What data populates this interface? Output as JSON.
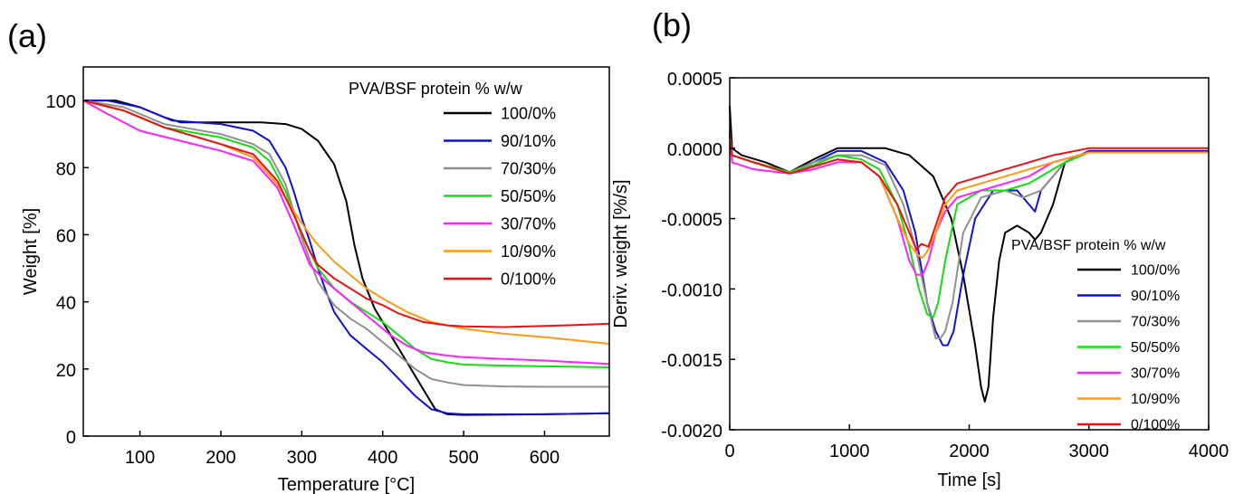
{
  "chart_data": [
    {
      "panel_label": "(a)",
      "type": "line",
      "xlabel": "Temperature [°C]",
      "ylabel": "Weight [%]",
      "xlim": [
        30,
        680
      ],
      "ylim": [
        0,
        110
      ],
      "xticks": [
        100,
        200,
        300,
        400,
        500,
        600
      ],
      "yticks": [
        0,
        20,
        40,
        60,
        80,
        100
      ],
      "legend_title": "PVA/BSF protein % w/w",
      "legend_position": "top-right",
      "grid": false,
      "series": [
        {
          "name": "100/0%",
          "color": "#000000",
          "x": [
            30,
            70,
            100,
            130,
            150,
            200,
            250,
            280,
            300,
            320,
            340,
            355,
            365,
            375,
            390,
            410,
            430,
            450,
            465,
            480,
            500,
            600,
            680
          ],
          "y": [
            100,
            100,
            98,
            95,
            93.5,
            93.5,
            93.5,
            93,
            91.5,
            88,
            81,
            70,
            57,
            47,
            38,
            30,
            22,
            14,
            8,
            6.5,
            6.3,
            6.5,
            6.8
          ]
        },
        {
          "name": "90/10%",
          "color": "#1010e0",
          "x": [
            30,
            60,
            100,
            140,
            200,
            240,
            260,
            280,
            290,
            300,
            310,
            320,
            330,
            340,
            360,
            380,
            400,
            420,
            440,
            460,
            480,
            500,
            600,
            680
          ],
          "y": [
            100,
            100,
            98,
            94,
            93,
            91,
            88,
            80,
            73,
            65,
            58,
            50,
            43,
            37,
            30,
            26,
            22,
            17,
            12,
            8,
            6.8,
            6.5,
            6.5,
            6.8
          ]
        },
        {
          "name": "70/30%",
          "color": "#909090",
          "x": [
            30,
            80,
            130,
            200,
            240,
            260,
            280,
            300,
            320,
            340,
            360,
            380,
            400,
            420,
            440,
            460,
            480,
            500,
            550,
            600,
            680
          ],
          "y": [
            100,
            98,
            93,
            90,
            87,
            84,
            75,
            59,
            46,
            39,
            35,
            32,
            28,
            24,
            20,
            17,
            16,
            15.2,
            14.8,
            14.7,
            14.7
          ]
        },
        {
          "name": "50/50%",
          "color": "#10e010",
          "x": [
            30,
            80,
            130,
            200,
            240,
            260,
            280,
            300,
            320,
            340,
            360,
            380,
            400,
            420,
            440,
            460,
            480,
            500,
            550,
            600,
            680
          ],
          "y": [
            100,
            97,
            92,
            89,
            86,
            82,
            73,
            60,
            50,
            44,
            40,
            37,
            34,
            30,
            26,
            23,
            22,
            21.3,
            21,
            20.8,
            20.5
          ]
        },
        {
          "name": "30/70%",
          "color": "#ff20ff",
          "x": [
            30,
            60,
            100,
            150,
            200,
            240,
            270,
            290,
            310,
            330,
            350,
            370,
            390,
            410,
            430,
            450,
            480,
            500,
            550,
            600,
            680
          ],
          "y": [
            100,
            96,
            91,
            88,
            85,
            82,
            74,
            63,
            51,
            46,
            42,
            38,
            34,
            30,
            27,
            25,
            24,
            23.5,
            23,
            22.5,
            21.5
          ]
        },
        {
          "name": "10/90%",
          "color": "#ff9a10",
          "x": [
            30,
            80,
            130,
            200,
            240,
            270,
            290,
            310,
            320,
            340,
            360,
            380,
            400,
            430,
            460,
            500,
            550,
            600,
            680
          ],
          "y": [
            100,
            97,
            92,
            87,
            83,
            75,
            67,
            60,
            57,
            52,
            48,
            44,
            41,
            37,
            34,
            32,
            30.5,
            29.5,
            27.5
          ]
        },
        {
          "name": "0/100%",
          "color": "#ee1010",
          "x": [
            30,
            80,
            130,
            200,
            240,
            270,
            290,
            310,
            320,
            340,
            360,
            380,
            400,
            420,
            450,
            480,
            500,
            550,
            600,
            650,
            680
          ],
          "y": [
            100,
            97,
            92,
            87,
            84,
            76,
            66,
            55,
            51,
            47,
            44,
            41,
            39,
            36.5,
            34,
            33,
            32.7,
            32.5,
            32.8,
            33.2,
            33.5
          ]
        }
      ]
    },
    {
      "panel_label": "(b)",
      "type": "line",
      "xlabel": "Time [s]",
      "ylabel": "Deriv. weight [%/s]",
      "xlim": [
        0,
        4000
      ],
      "ylim": [
        -0.002,
        0.0005
      ],
      "xticks": [
        0,
        1000,
        2000,
        3000,
        4000
      ],
      "yticks": [
        0.0005,
        0.0,
        -0.0005,
        -0.001,
        -0.0015,
        -0.002
      ],
      "ytick_labels": [
        "0.0005",
        "0.0000",
        "-0.0005",
        "-0.0010",
        "-0.0015",
        "-0.0020"
      ],
      "legend_title": "PVA/BSF protein % w/w",
      "legend_position": "bottom-right",
      "grid": false,
      "series": [
        {
          "name": "100/0%",
          "color": "#000000",
          "x": [
            0,
            20,
            100,
            300,
            500,
            700,
            900,
            1100,
            1300,
            1500,
            1700,
            1850,
            1950,
            2050,
            2100,
            2130,
            2160,
            2200,
            2250,
            2300,
            2400,
            2500,
            2550,
            2600,
            2700,
            2800,
            3000,
            3500,
            4000
          ],
          "y": [
            0.0003,
            0.0,
            -5e-05,
            -0.0001,
            -0.00017,
            -8e-05,
            0.0,
            0.0,
            0.0,
            -5e-05,
            -0.0002,
            -0.0005,
            -0.0009,
            -0.0014,
            -0.0017,
            -0.0018,
            -0.0017,
            -0.0012,
            -0.0008,
            -0.0006,
            -0.00055,
            -0.0006,
            -0.00065,
            -0.0006,
            -0.0004,
            -0.0001,
            -2e-05,
            -2e-05,
            -2e-05
          ]
        },
        {
          "name": "90/10%",
          "color": "#1010e0",
          "x": [
            0,
            20,
            200,
            500,
            700,
            900,
            1100,
            1300,
            1450,
            1550,
            1650,
            1720,
            1780,
            1820,
            1870,
            1950,
            2050,
            2200,
            2400,
            2500,
            2550,
            2600,
            2700,
            2800,
            3000,
            4000
          ],
          "y": [
            0.0001,
            -5e-05,
            -0.0001,
            -0.00017,
            -0.0001,
            -2e-05,
            -2e-05,
            -0.0001,
            -0.0003,
            -0.0006,
            -0.0011,
            -0.0013,
            -0.0014,
            -0.0014,
            -0.0013,
            -0.0009,
            -0.0005,
            -0.0003,
            -0.0003,
            -0.0004,
            -0.00045,
            -0.0003,
            -0.0002,
            -0.0001,
            -2e-05,
            -2e-05
          ]
        },
        {
          "name": "70/30%",
          "color": "#909090",
          "x": [
            0,
            20,
            200,
            500,
            700,
            900,
            1100,
            1300,
            1450,
            1550,
            1650,
            1720,
            1760,
            1800,
            1860,
            1950,
            2100,
            2300,
            2450,
            2600,
            2800,
            3000,
            4000
          ],
          "y": [
            0.0001,
            -5e-05,
            -0.0001,
            -0.00017,
            -0.0001,
            -5e-05,
            -5e-05,
            -0.00012,
            -0.0004,
            -0.0007,
            -0.0011,
            -0.00135,
            -0.00135,
            -0.0013,
            -0.0011,
            -0.0006,
            -0.00035,
            -0.0003,
            -0.00035,
            -0.0003,
            -0.0001,
            -3e-05,
            -3e-05
          ]
        },
        {
          "name": "50/50%",
          "color": "#10e010",
          "x": [
            0,
            20,
            200,
            500,
            700,
            900,
            1100,
            1250,
            1400,
            1500,
            1580,
            1650,
            1700,
            1740,
            1800,
            1900,
            2100,
            2300,
            2500,
            2700,
            2800,
            3000,
            4000
          ],
          "y": [
            0.0001,
            -5e-05,
            -0.0001,
            -0.00017,
            -0.00012,
            -5e-05,
            -8e-05,
            -0.00015,
            -0.0004,
            -0.0007,
            -0.001,
            -0.00118,
            -0.0012,
            -0.0011,
            -0.0008,
            -0.0004,
            -0.0003,
            -0.0003,
            -0.00025,
            -0.00015,
            -0.0001,
            -3e-05,
            -3e-05
          ]
        },
        {
          "name": "30/70%",
          "color": "#ff20ff",
          "x": [
            0,
            20,
            200,
            500,
            700,
            900,
            1100,
            1250,
            1400,
            1500,
            1560,
            1610,
            1660,
            1720,
            1800,
            1900,
            2100,
            2300,
            2500,
            2700,
            3000,
            4000
          ],
          "y": [
            0.0001,
            -0.0001,
            -0.00015,
            -0.00018,
            -0.00015,
            -0.0001,
            -0.0001,
            -0.0002,
            -0.0005,
            -0.0008,
            -0.0009,
            -0.0009,
            -0.0008,
            -0.0006,
            -0.00045,
            -0.00035,
            -0.0003,
            -0.00025,
            -0.0002,
            -0.0001,
            -3e-05,
            -3e-05
          ]
        },
        {
          "name": "10/90%",
          "color": "#ff9a10",
          "x": [
            0,
            20,
            200,
            500,
            700,
            900,
            1100,
            1250,
            1400,
            1500,
            1560,
            1610,
            1660,
            1720,
            1800,
            1900,
            2100,
            2300,
            2500,
            2700,
            3000,
            4000
          ],
          "y": [
            0.0001,
            -5e-05,
            -0.0001,
            -0.00018,
            -0.00013,
            -8e-05,
            -0.0001,
            -0.0002,
            -0.0005,
            -0.00068,
            -0.00075,
            -0.00078,
            -0.00072,
            -0.0006,
            -0.0004,
            -0.0003,
            -0.00025,
            -0.0002,
            -0.00015,
            -0.0001,
            -3e-05,
            -3e-05
          ]
        },
        {
          "name": "0/100%",
          "color": "#ee1010",
          "x": [
            0,
            20,
            200,
            500,
            700,
            900,
            1100,
            1250,
            1400,
            1500,
            1560,
            1600,
            1660,
            1720,
            1800,
            1900,
            2100,
            2300,
            2500,
            2700,
            3000,
            3500,
            4000
          ],
          "y": [
            0.0001,
            -5e-05,
            -0.0001,
            -0.00018,
            -0.00013,
            -8e-05,
            -0.0001,
            -0.0002,
            -0.0004,
            -0.0006,
            -0.00072,
            -0.00068,
            -0.0007,
            -0.00055,
            -0.00035,
            -0.00025,
            -0.0002,
            -0.00015,
            -0.0001,
            -5e-05,
            0.0,
            0.0,
            0.0
          ]
        }
      ]
    }
  ]
}
